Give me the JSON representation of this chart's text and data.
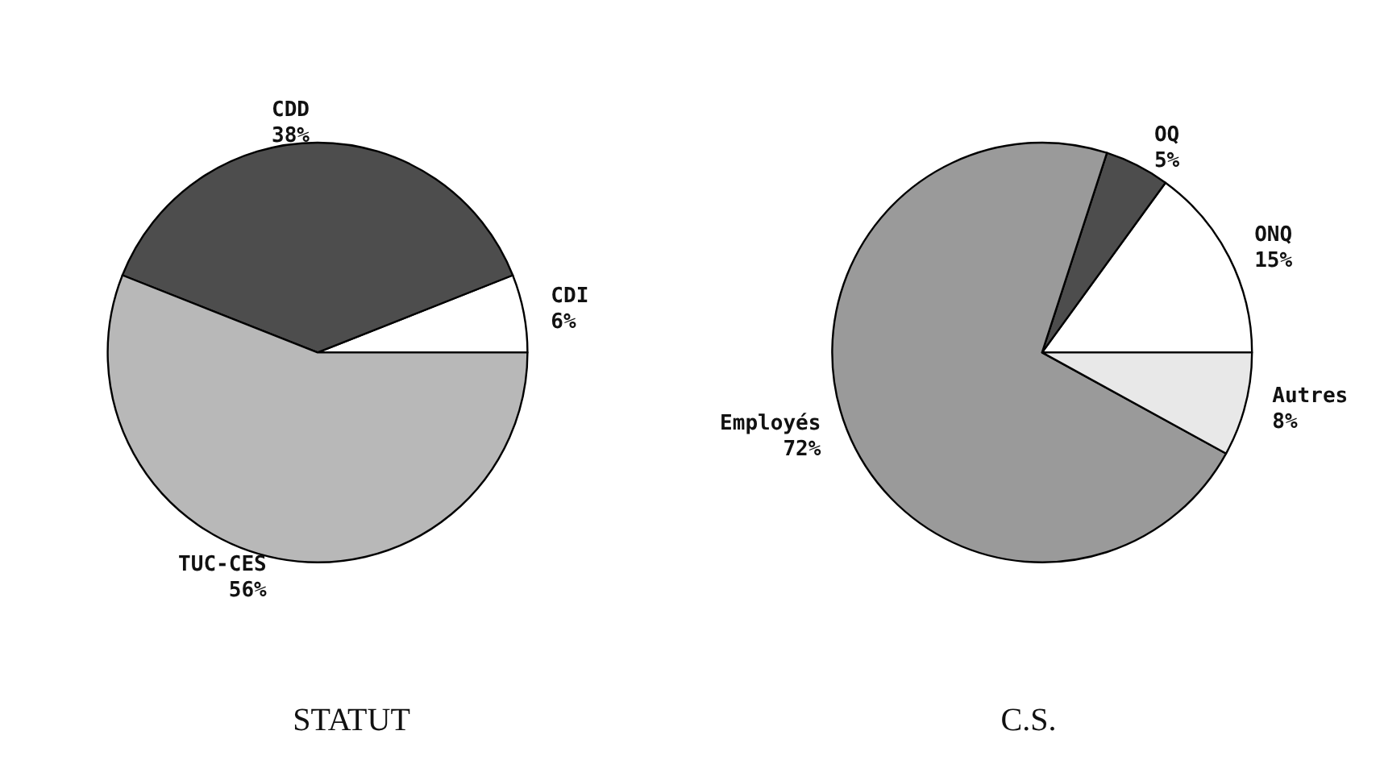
{
  "chart_data": [
    {
      "type": "pie",
      "title": "STATUT",
      "categories": [
        "CDI",
        "CDD",
        "TUC-CES"
      ],
      "values": [
        6,
        38,
        56
      ],
      "value_labels": [
        "6%",
        "38%",
        "56%"
      ],
      "colors": [
        "#ffffff",
        "#4d4d4d",
        "#b8b8b8"
      ],
      "legend": false
    },
    {
      "type": "pie",
      "title": "C.S.",
      "categories": [
        "ONQ",
        "OQ",
        "Employés",
        "Autres"
      ],
      "values": [
        15,
        5,
        72,
        8
      ],
      "value_labels": [
        "15%",
        "5%",
        "72%",
        "8%"
      ],
      "colors": [
        "#ffffff",
        "#4d4d4d",
        "#9a9a9a",
        "#e8e8e8"
      ],
      "legend": false
    }
  ]
}
